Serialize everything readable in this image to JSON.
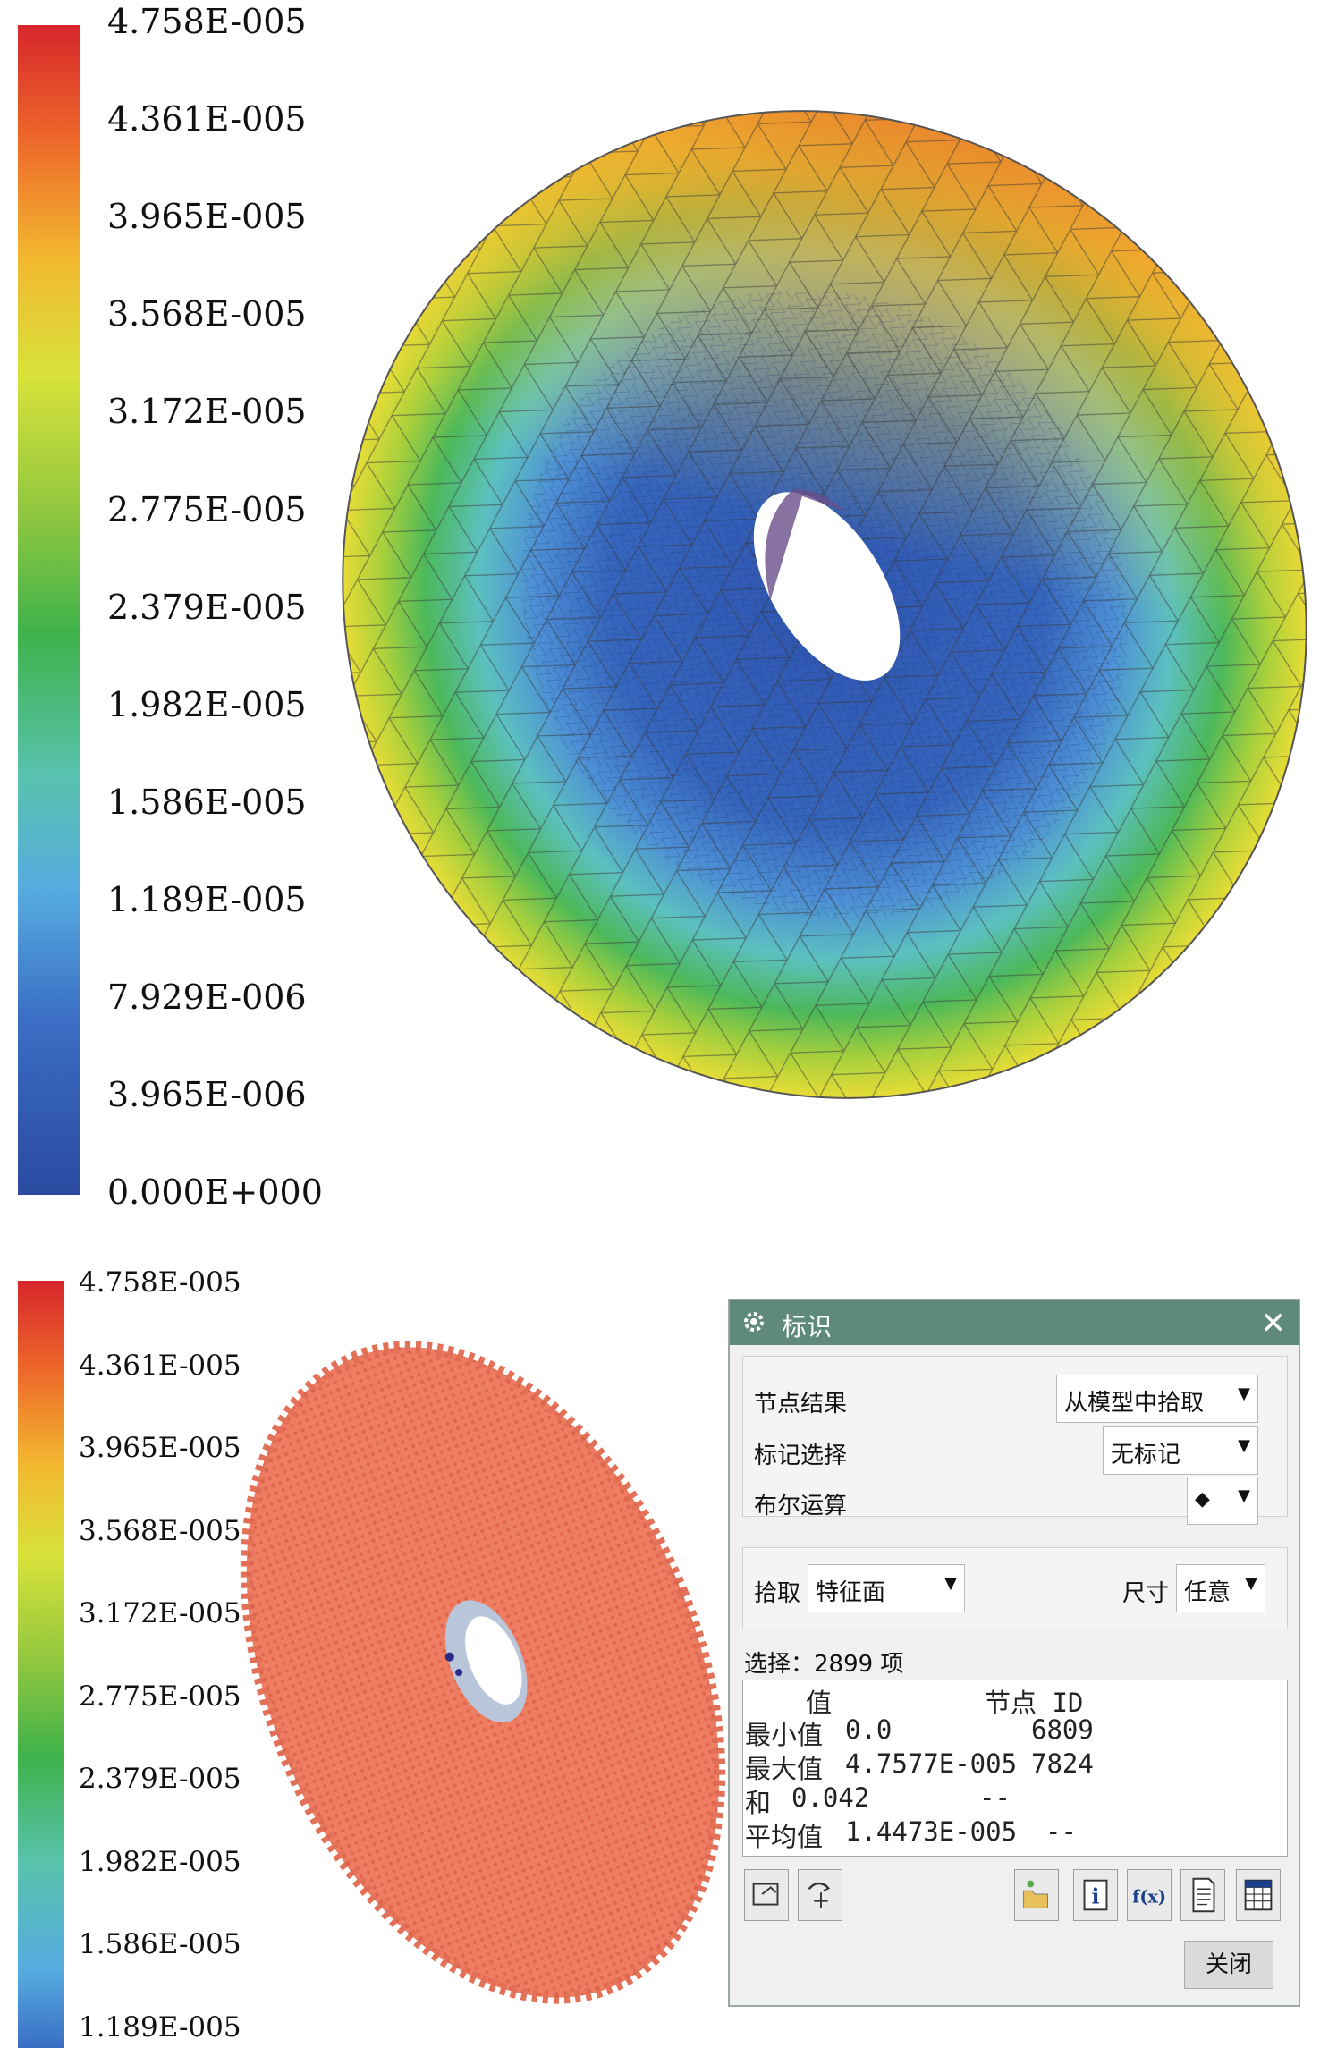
{
  "top_panel": {
    "legend_labels": [
      "4.758E-005",
      "4.361E-005",
      "3.965E-005",
      "3.568E-005",
      "3.172E-005",
      "2.775E-005",
      "2.379E-005",
      "1.982E-005",
      "1.586E-005",
      "1.189E-005",
      "7.929E-006",
      "3.965E-006",
      "0.000E+000"
    ]
  },
  "bottom_panel": {
    "legend_labels": [
      "4.758E-005",
      "4.361E-005",
      "3.965E-005",
      "3.568E-005",
      "3.172E-005",
      "2.775E-005",
      "2.379E-005",
      "1.982E-005",
      "1.586E-005",
      "1.189E-005"
    ]
  },
  "colors": {
    "legend_top": "#d7262b",
    "legend_bottom": "#2b4aa0",
    "dialog_title": "#5f8a7a",
    "model_highlight": "#e9785e"
  },
  "dialog": {
    "title": "标识",
    "close_icon": "close-icon",
    "node_result_label": "节点结果",
    "node_result_value": "从模型中拾取",
    "mark_select_label": "标记选择",
    "mark_select_value": "无标记",
    "boolean_label": "布尔运算",
    "pick_label": "拾取",
    "pick_value": "特征面",
    "size_label": "尺寸",
    "size_value": "任意",
    "selection_count": "选择：2899 项",
    "result": {
      "header_value": "值",
      "header_node": "节点 ID",
      "rows": [
        {
          "label": "最小值",
          "value": "0.0",
          "node": "6809"
        },
        {
          "label": "最大值",
          "value": "4.7577E-005",
          "node": "7824"
        },
        {
          "label": "和",
          "value": "0.042",
          "node": "--"
        },
        {
          "label": "平均值",
          "value": "1.4473E-005",
          "node": "--"
        }
      ]
    },
    "close_button": "关闭"
  }
}
